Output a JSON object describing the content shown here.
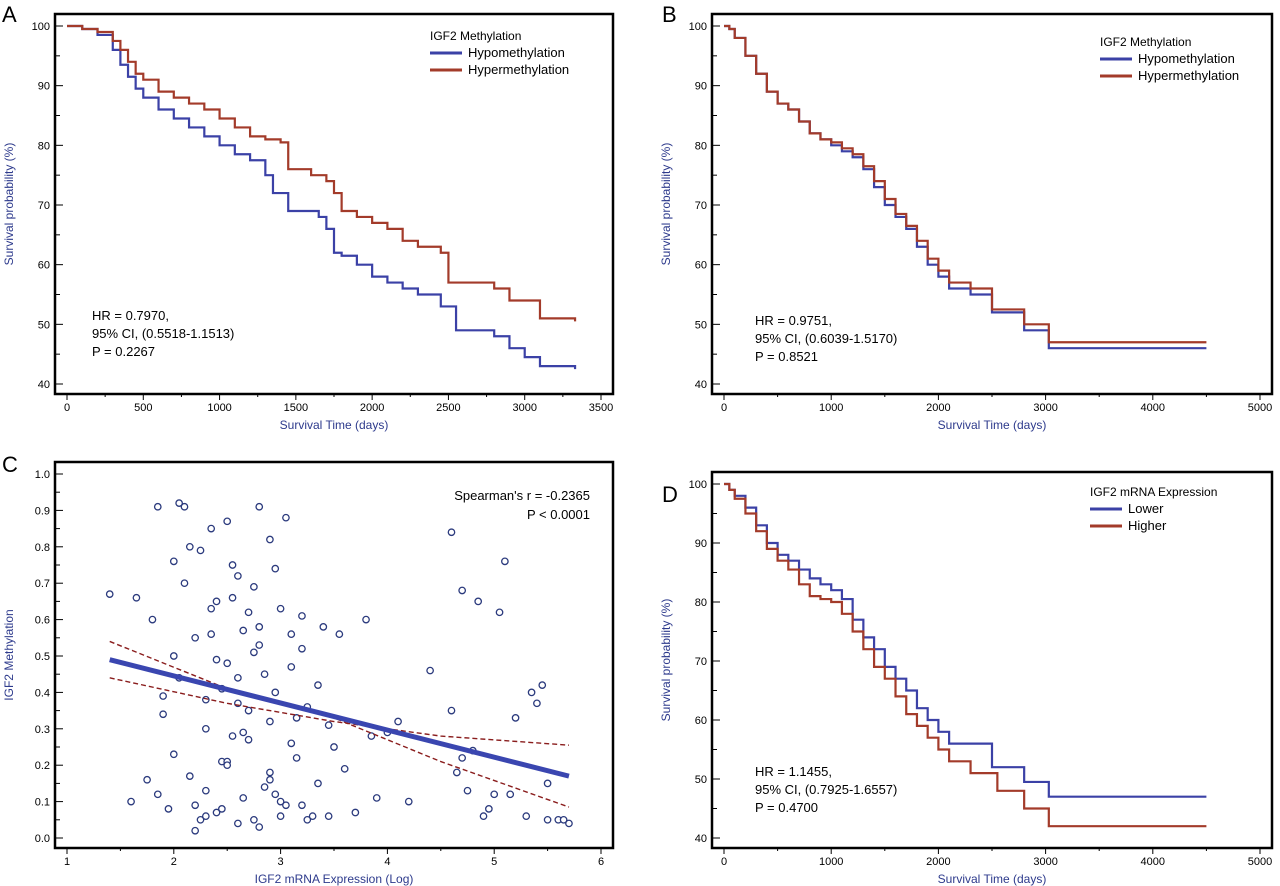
{
  "colors": {
    "blue": "#3b41a6",
    "red": "#a33b2a",
    "point": "#2b3a7d",
    "fit": "#3a46b0",
    "ci": "#8a1d1d",
    "axis_label": "#2d3a8c"
  },
  "chart_data": [
    {
      "panel": "A",
      "type": "line",
      "step": true,
      "xlabel": "Survival Time (days)",
      "ylabel": "Survival probability (%)",
      "xlim": [
        0,
        3500
      ],
      "ylim": [
        40,
        100
      ],
      "xticks": [
        0,
        500,
        1000,
        1500,
        2000,
        2500,
        3000,
        3500
      ],
      "yticks": [
        40,
        50,
        60,
        70,
        80,
        90,
        100
      ],
      "legend_title": "IGF2 Methylation",
      "legend_position": "top-right",
      "series": [
        {
          "name": "Hypomethylation",
          "color": "#3b41a6",
          "x": [
            0,
            100,
            200,
            300,
            350,
            400,
            450,
            500,
            600,
            700,
            800,
            900,
            1000,
            1100,
            1200,
            1300,
            1350,
            1450,
            1550,
            1650,
            1700,
            1750,
            1800,
            1900,
            2000,
            2100,
            2200,
            2300,
            2450,
            2550,
            2650,
            2800,
            2900,
            3000,
            3100,
            3330
          ],
          "y": [
            100,
            99.5,
            98.5,
            96,
            93.5,
            91.5,
            89.5,
            88,
            86,
            84.5,
            83,
            81.5,
            80,
            78.5,
            77.5,
            75,
            72,
            69,
            69,
            68,
            66,
            62,
            61.5,
            60,
            58,
            57,
            56,
            55,
            53,
            49,
            49,
            48,
            46,
            44.5,
            43,
            42.5
          ]
        },
        {
          "name": "Hypermethylation",
          "color": "#a33b2a",
          "x": [
            0,
            100,
            200,
            300,
            350,
            400,
            450,
            500,
            600,
            700,
            800,
            900,
            1000,
            1100,
            1200,
            1300,
            1400,
            1450,
            1600,
            1700,
            1750,
            1800,
            1900,
            2000,
            2100,
            2200,
            2300,
            2450,
            2500,
            2800,
            2900,
            3100,
            3330
          ],
          "y": [
            100,
            99.5,
            99,
            97.5,
            96,
            94,
            92,
            91,
            89,
            88,
            87,
            86,
            84.5,
            83,
            81.5,
            81,
            80.5,
            76,
            75,
            74,
            72,
            69,
            68,
            67,
            66,
            64,
            63,
            62,
            57,
            56,
            54,
            51,
            50.5
          ]
        }
      ],
      "annotation": [
        "HR = 0.7970,",
        "95% CI, (0.5518-1.1513)",
        "P = 0.2267"
      ]
    },
    {
      "panel": "B",
      "type": "line",
      "step": true,
      "xlabel": "Survival Time (days)",
      "ylabel": "Survival probability (%)",
      "xlim": [
        0,
        5000
      ],
      "ylim": [
        40,
        100
      ],
      "xticks": [
        0,
        1000,
        2000,
        3000,
        4000,
        5000
      ],
      "yticks": [
        40,
        50,
        60,
        70,
        80,
        90,
        100
      ],
      "legend_title": "IGF2 Methylation",
      "legend_position": "top-right",
      "series": [
        {
          "name": "Hypomethylation",
          "color": "#3b41a6",
          "x": [
            0,
            50,
            100,
            200,
            300,
            400,
            500,
            600,
            700,
            800,
            900,
            1000,
            1100,
            1200,
            1300,
            1400,
            1500,
            1600,
            1700,
            1800,
            1900,
            2000,
            2100,
            2300,
            2500,
            2800,
            3030,
            4500
          ],
          "y": [
            100,
            99.5,
            98,
            95,
            92,
            89,
            87,
            86,
            84,
            82,
            81,
            80,
            79,
            78,
            76,
            73,
            70,
            68,
            66,
            63,
            60,
            58,
            56,
            55,
            52,
            49,
            46,
            46
          ]
        },
        {
          "name": "Hypermethylation",
          "color": "#a33b2a",
          "x": [
            0,
            50,
            100,
            200,
            300,
            400,
            500,
            600,
            700,
            800,
            900,
            1000,
            1100,
            1200,
            1300,
            1400,
            1500,
            1600,
            1700,
            1800,
            1900,
            2000,
            2100,
            2300,
            2500,
            2800,
            3030,
            4500
          ],
          "y": [
            100,
            99.5,
            98,
            95,
            92,
            89,
            87,
            86,
            84,
            82,
            81,
            80.5,
            79.5,
            78.5,
            76.5,
            74,
            71,
            68.5,
            66.5,
            64,
            61,
            59,
            57,
            56,
            52.5,
            50,
            47,
            47
          ]
        }
      ],
      "annotation": [
        "HR = 0.9751,",
        "95% CI, (0.6039-1.5170)",
        "P = 0.8521"
      ]
    },
    {
      "panel": "C",
      "type": "scatter",
      "xlabel": "IGF2 mRNA Expression (Log)",
      "ylabel": "IGF2 Methylation",
      "xlim": [
        1,
        6
      ],
      "ylim": [
        0,
        1
      ],
      "xticks": [
        1,
        2,
        3,
        4,
        5,
        6
      ],
      "yticks": [
        0.0,
        0.1,
        0.2,
        0.3,
        0.4,
        0.5,
        0.6,
        0.7,
        0.8,
        0.9,
        1.0
      ],
      "points": {
        "x": [
          1.4,
          1.6,
          1.65,
          1.75,
          1.8,
          1.85,
          1.9,
          1.95,
          2.0,
          2.05,
          2.1,
          2.15,
          2.2,
          2.25,
          2.3,
          2.35,
          2.4,
          2.45,
          2.5,
          2.55,
          2.6,
          2.65,
          2.7,
          2.75,
          2.8,
          2.85,
          2.9,
          2.95,
          3.0,
          3.05,
          3.1,
          3.15,
          3.2,
          3.25,
          3.3,
          3.35,
          3.4,
          3.45,
          3.5,
          3.6,
          3.7,
          3.8,
          3.9,
          4.0,
          4.2,
          4.4,
          4.6,
          4.7,
          4.8,
          4.9,
          5.0,
          5.1,
          5.2,
          5.3,
          5.4,
          5.5,
          5.6,
          5.7,
          2.0,
          2.1,
          2.2,
          2.3,
          2.4,
          2.5,
          2.6,
          2.7,
          2.8,
          2.9,
          3.0,
          3.1,
          3.2,
          2.15,
          2.35,
          2.55,
          2.75,
          2.95,
          3.15,
          3.35,
          2.25,
          2.45,
          2.65,
          2.85,
          3.05,
          3.25,
          2.05,
          2.3,
          2.5,
          2.7,
          2.9,
          3.1,
          2.2,
          2.4,
          2.6,
          2.8,
          3.0,
          2.35,
          2.55,
          2.75,
          1.85,
          2.95,
          4.6,
          4.7,
          5.05,
          4.85,
          5.15,
          5.45,
          5.5,
          4.65,
          4.75,
          4.95,
          5.35,
          5.65,
          4.1,
          3.85,
          3.55,
          3.45,
          2.0,
          2.6,
          2.3,
          2.8,
          1.9,
          2.5,
          2.9,
          3.2,
          2.45,
          2.65
        ],
        "y": [
          0.67,
          0.1,
          0.66,
          0.16,
          0.6,
          0.91,
          0.39,
          0.08,
          0.76,
          0.92,
          0.91,
          0.17,
          0.09,
          0.79,
          0.13,
          0.63,
          0.49,
          0.21,
          0.87,
          0.28,
          0.37,
          0.57,
          0.62,
          0.05,
          0.91,
          0.45,
          0.82,
          0.12,
          0.06,
          0.88,
          0.56,
          0.22,
          0.61,
          0.36,
          0.06,
          0.42,
          0.58,
          0.31,
          0.25,
          0.19,
          0.07,
          0.6,
          0.11,
          0.29,
          0.1,
          0.46,
          0.84,
          0.68,
          0.24,
          0.06,
          0.12,
          0.76,
          0.33,
          0.06,
          0.37,
          0.05,
          0.05,
          0.04,
          0.5,
          0.7,
          0.55,
          0.3,
          0.65,
          0.48,
          0.72,
          0.35,
          0.58,
          0.18,
          0.63,
          0.26,
          0.52,
          0.8,
          0.85,
          0.75,
          0.69,
          0.4,
          0.33,
          0.15,
          0.05,
          0.08,
          0.11,
          0.14,
          0.09,
          0.05,
          0.44,
          0.38,
          0.21,
          0.27,
          0.32,
          0.47,
          0.02,
          0.07,
          0.04,
          0.03,
          0.1,
          0.56,
          0.66,
          0.51,
          0.12,
          0.74,
          0.35,
          0.22,
          0.62,
          0.65,
          0.12,
          0.42,
          0.15,
          0.18,
          0.13,
          0.08,
          0.4,
          0.05,
          0.32,
          0.28,
          0.56,
          0.06,
          0.23,
          0.44,
          0.06,
          0.53,
          0.34,
          0.2,
          0.16,
          0.09,
          0.41,
          0.29
        ]
      },
      "fit_line": {
        "x": [
          1.4,
          5.7
        ],
        "y": [
          0.49,
          0.17
        ]
      },
      "ci_upper": {
        "x": [
          1.4,
          2.5,
          3.5,
          4.5,
          5.7
        ],
        "y": [
          0.44,
          0.37,
          0.32,
          0.28,
          0.255
        ]
      },
      "ci_lower": {
        "x": [
          1.4,
          2.5,
          3.5,
          4.5,
          5.7
        ],
        "y": [
          0.54,
          0.41,
          0.33,
          0.21,
          0.085
        ]
      },
      "annotation": [
        "Spearman's r = -0.2365",
        "P < 0.0001"
      ]
    },
    {
      "panel": "D",
      "type": "line",
      "step": true,
      "xlabel": "Survival Time (days)",
      "ylabel": "Survival probability (%)",
      "xlim": [
        0,
        5000
      ],
      "ylim": [
        40,
        100
      ],
      "xticks": [
        0,
        1000,
        2000,
        3000,
        4000,
        5000
      ],
      "yticks": [
        40,
        50,
        60,
        70,
        80,
        90,
        100
      ],
      "legend_title": "IGF2 mRNA Expression",
      "legend_position": "top-right",
      "series": [
        {
          "name": "Lower",
          "color": "#3b41a6",
          "x": [
            0,
            50,
            100,
            200,
            300,
            400,
            500,
            600,
            700,
            800,
            900,
            1000,
            1100,
            1200,
            1300,
            1400,
            1500,
            1600,
            1700,
            1800,
            1900,
            2000,
            2100,
            2200,
            2500,
            2800,
            3030,
            4500
          ],
          "y": [
            100,
            99,
            98,
            96,
            93,
            90,
            88,
            87,
            85.5,
            84,
            83,
            82,
            80.5,
            77,
            74,
            72,
            69,
            67,
            65,
            62,
            60,
            58,
            56,
            56,
            52,
            49.5,
            47,
            47
          ]
        },
        {
          "name": "Higher",
          "color": "#a33b2a",
          "x": [
            0,
            50,
            100,
            200,
            300,
            400,
            500,
            600,
            700,
            800,
            900,
            1000,
            1100,
            1200,
            1300,
            1400,
            1500,
            1600,
            1700,
            1800,
            1900,
            2000,
            2100,
            2300,
            2550,
            2800,
            3030,
            4500
          ],
          "y": [
            100,
            99,
            97.5,
            95,
            92,
            89,
            87,
            85.5,
            83,
            81,
            80.5,
            80,
            78,
            75,
            72,
            69,
            67,
            64,
            61,
            59,
            57,
            55,
            53,
            51,
            48,
            45,
            42,
            42
          ]
        }
      ],
      "annotation": [
        "HR = 1.1455,",
        "95% CI, (0.7925-1.6557)",
        "P = 0.4700"
      ]
    }
  ]
}
